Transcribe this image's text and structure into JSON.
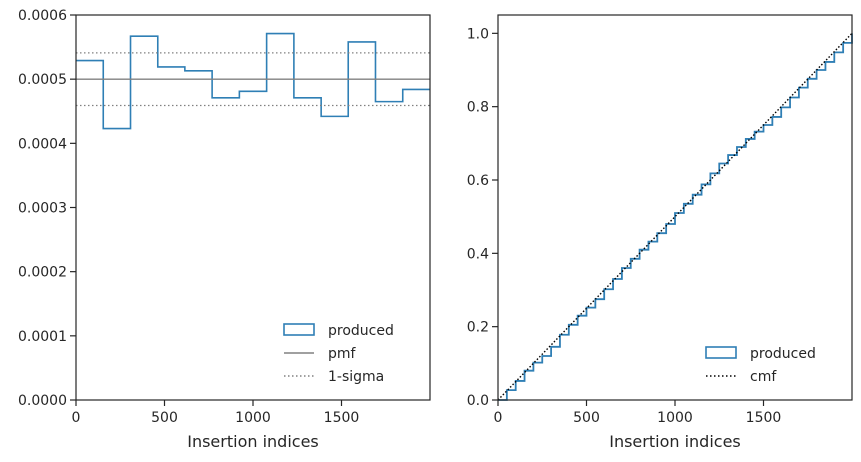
{
  "chart_data": [
    {
      "type": "step",
      "xlabel": "Insertion indices",
      "ylabel": "",
      "xlim": [
        0,
        2000
      ],
      "ylim": [
        0,
        0.0006
      ],
      "xticks": [
        0,
        500,
        1000,
        1500
      ],
      "xtick_labels": [
        "0",
        "500",
        "1000",
        "1500"
      ],
      "yticks": [
        0,
        0.0001,
        0.0002,
        0.0003,
        0.0004,
        0.0005,
        0.0006
      ],
      "ytick_labels": [
        "0.0000",
        "0.0001",
        "0.0002",
        "0.0003",
        "0.0004",
        "0.0005",
        "0.0006"
      ],
      "legend_position": "lower-right",
      "series": [
        {
          "name": "produced",
          "style": "histogram-step",
          "color": "#2f7fb5",
          "bin_edges": [
            0,
            154,
            308,
            462,
            615,
            769,
            923,
            1077,
            1231,
            1385,
            1538,
            1692,
            1846,
            2000
          ],
          "values": [
            0.000529,
            0.000423,
            0.000567,
            0.000519,
            0.000513,
            0.000471,
            0.000481,
            0.000571,
            0.000471,
            0.000442,
            0.000558,
            0.000465,
            0.000484
          ]
        },
        {
          "name": "pmf",
          "style": "solid-hline",
          "color": "#808080",
          "y": 0.0005
        },
        {
          "name": "1-sigma",
          "style": "dotted-hline",
          "color": "#808080",
          "y": [
            0.000541,
            0.000459
          ]
        }
      ]
    },
    {
      "type": "line",
      "xlabel": "Insertion indices",
      "ylabel": "",
      "xlim": [
        0,
        2000
      ],
      "ylim": [
        0,
        1.05
      ],
      "xticks": [
        0,
        500,
        1000,
        1500
      ],
      "xtick_labels": [
        "0",
        "500",
        "1000",
        "1500"
      ],
      "yticks": [
        0,
        0.2,
        0.4,
        0.6,
        0.8,
        1.0
      ],
      "ytick_labels": [
        "0.0",
        "0.2",
        "0.4",
        "0.6",
        "0.8",
        "1.0"
      ],
      "legend_position": "lower-right",
      "series": [
        {
          "name": "produced",
          "style": "step",
          "color": "#2f7fb5",
          "x": [
            0,
            50,
            100,
            150,
            200,
            250,
            300,
            350,
            400,
            450,
            500,
            550,
            600,
            650,
            700,
            750,
            800,
            850,
            900,
            950,
            1000,
            1050,
            1100,
            1150,
            1200,
            1250,
            1300,
            1350,
            1400,
            1450,
            1500,
            1550,
            1600,
            1650,
            1700,
            1750,
            1800,
            1850,
            1900,
            1950,
            2000
          ],
          "values": [
            0,
            0.027,
            0.052,
            0.08,
            0.102,
            0.12,
            0.145,
            0.178,
            0.205,
            0.23,
            0.252,
            0.275,
            0.302,
            0.33,
            0.36,
            0.385,
            0.41,
            0.432,
            0.455,
            0.48,
            0.51,
            0.535,
            0.56,
            0.588,
            0.618,
            0.645,
            0.668,
            0.69,
            0.712,
            0.732,
            0.75,
            0.772,
            0.798,
            0.825,
            0.852,
            0.876,
            0.9,
            0.922,
            0.948,
            0.974,
            1.0
          ]
        },
        {
          "name": "cmf",
          "style": "dotted",
          "color": "#000000",
          "x": [
            0,
            2000
          ],
          "values": [
            0,
            1.0
          ]
        }
      ]
    }
  ]
}
